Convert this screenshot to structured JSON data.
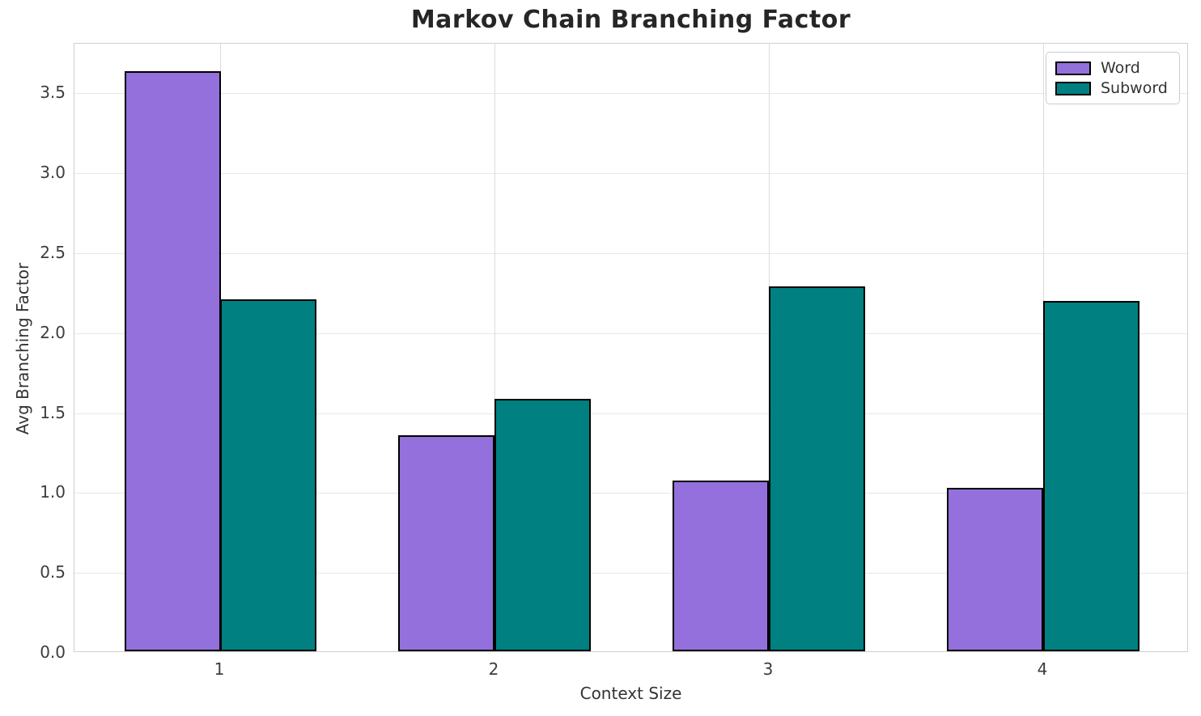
{
  "chart_data": {
    "type": "bar",
    "title": "Markov Chain Branching Factor",
    "xlabel": "Context Size",
    "ylabel": "Avg Branching Factor",
    "categories": [
      "1",
      "2",
      "3",
      "4"
    ],
    "series": [
      {
        "name": "Word",
        "color": "#9370DB",
        "edge_color": "#000000",
        "values": [
          3.63,
          1.35,
          1.07,
          1.02
        ]
      },
      {
        "name": "Subword",
        "color": "#008080",
        "edge_color": "#000000",
        "values": [
          2.2,
          1.58,
          2.28,
          2.19
        ]
      }
    ],
    "ytick_labels": [
      "0.0",
      "0.5",
      "1.0",
      "1.5",
      "2.0",
      "2.5",
      "3.0",
      "3.5"
    ],
    "yticks": [
      0.0,
      0.5,
      1.0,
      1.5,
      2.0,
      2.5,
      3.0,
      3.5
    ],
    "ylim": [
      0,
      3.81
    ],
    "bar_group_width": 0.7,
    "grid": true,
    "legend": {
      "position": "upper right",
      "entries": [
        "Word",
        "Subword"
      ]
    }
  }
}
